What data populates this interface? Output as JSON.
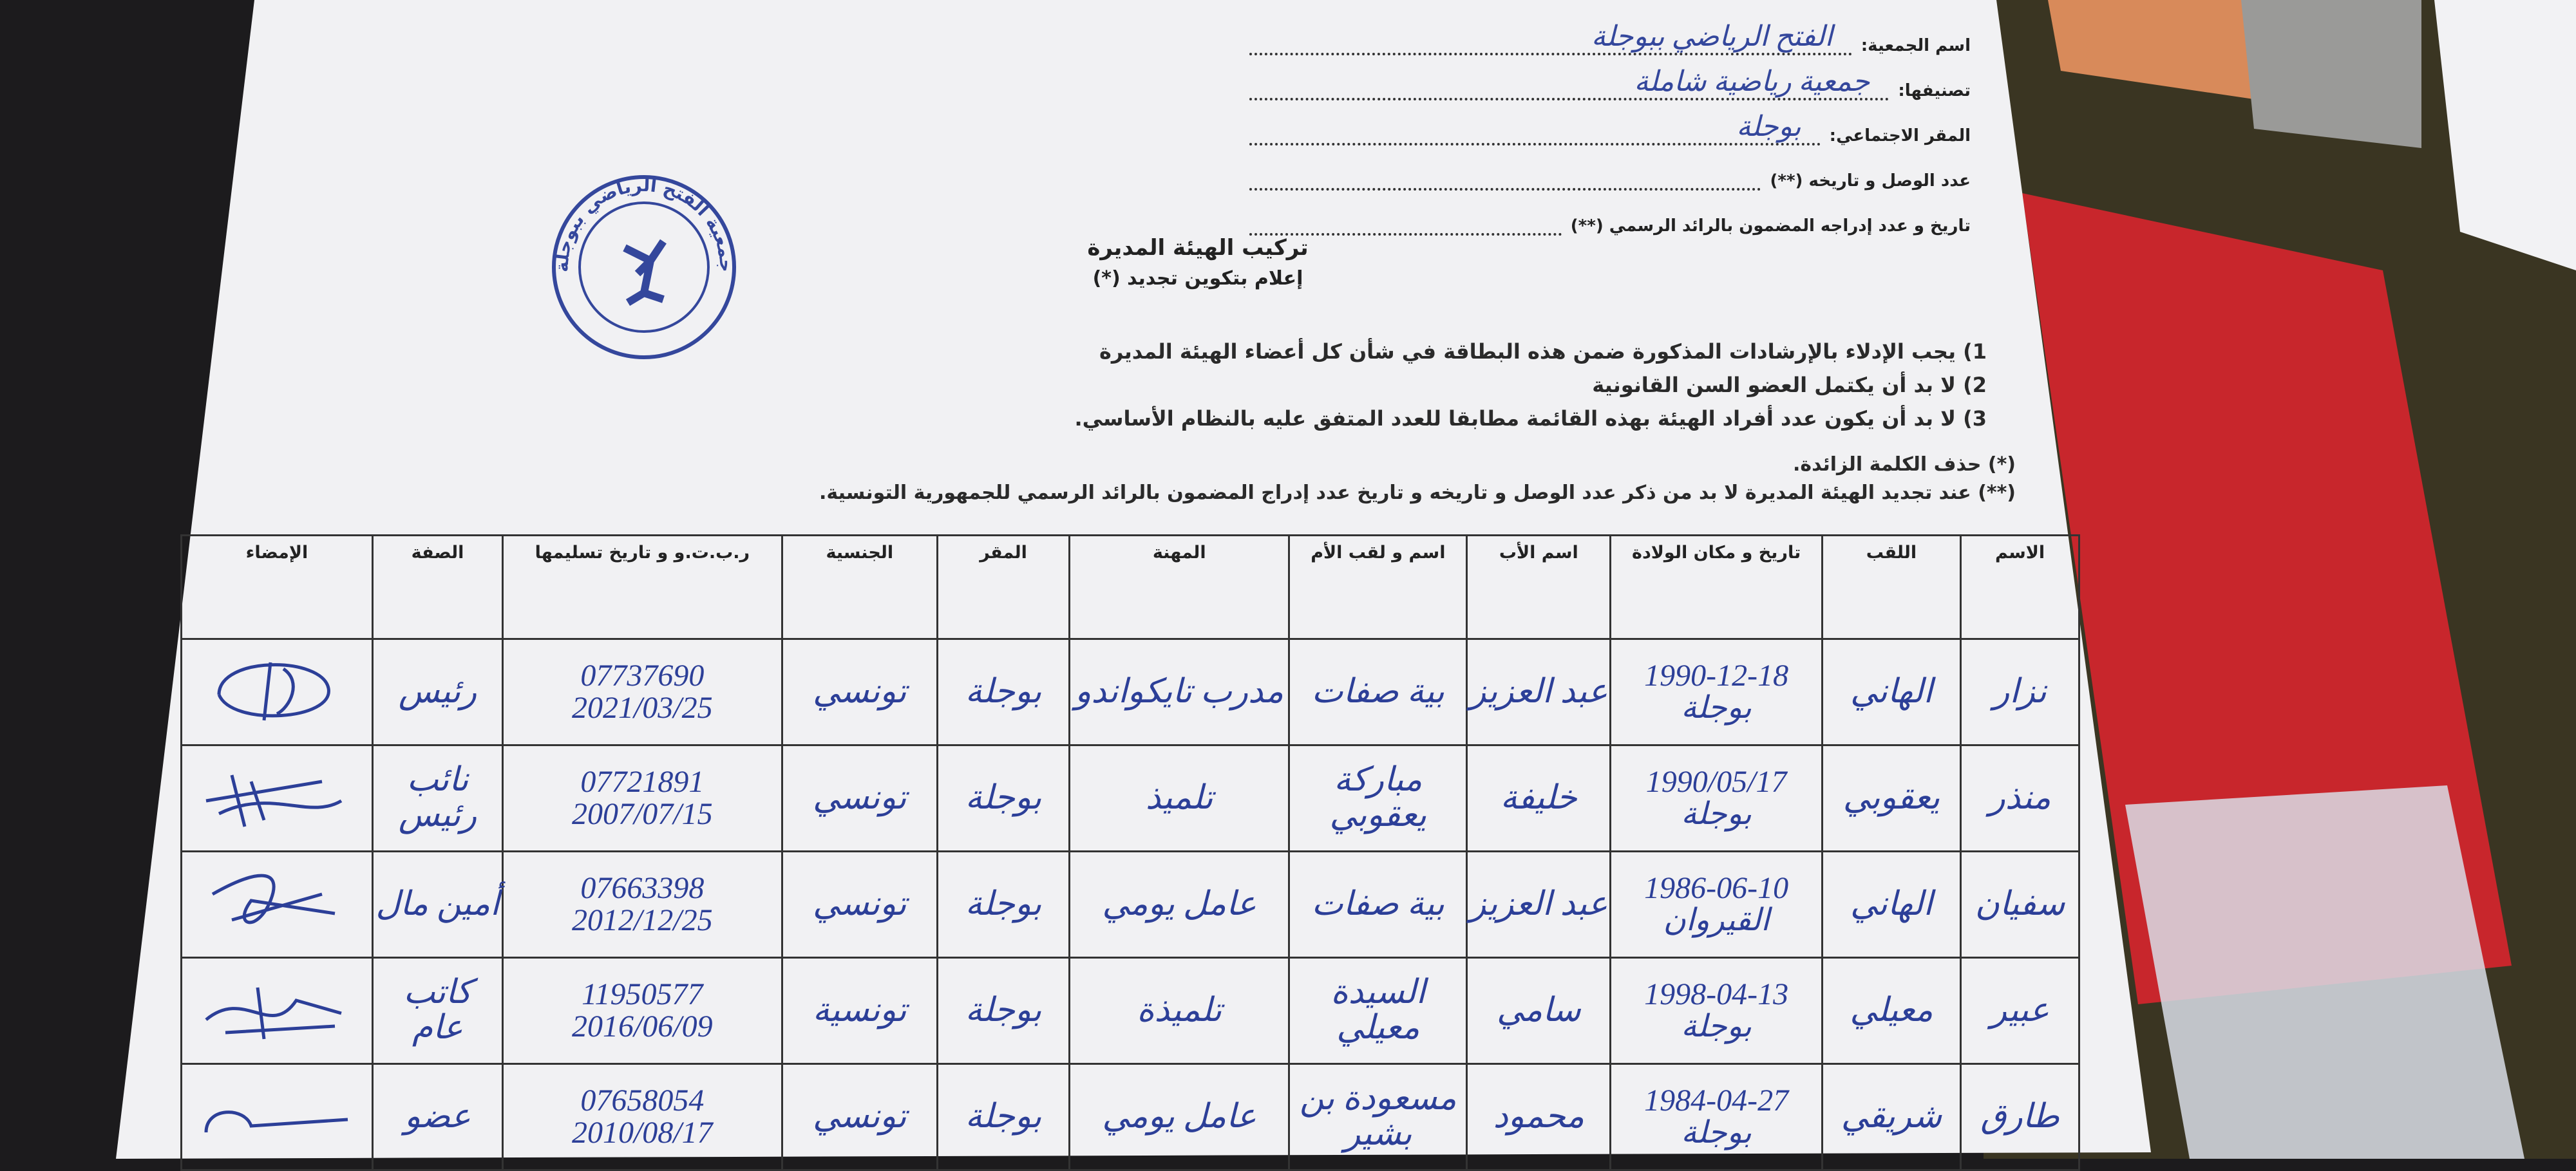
{
  "header": {
    "fields": [
      {
        "label": "اسم الجمعية:",
        "value": "الفتح الرياضي ببوجلة"
      },
      {
        "label": "تصنيفها:",
        "value": "جمعية رياضية شاملة"
      },
      {
        "label": "المقر الاجتماعي:",
        "value": "بوجلة"
      },
      {
        "label": "عدد الوصل و تاريخه (**)"
      },
      {
        "label": "تاريخ و عدد إدراجه المضمون بالرائد الرسمي (**)"
      }
    ]
  },
  "stamp": {
    "text": "جمعية الفتح الرياضي ببوجلة"
  },
  "title": "تركيب الهيئة المديرة",
  "subtitle": "إعلام بتكوين تجديد (*)",
  "instructions": [
    "1) يجب الإدلاء بالإرشادات المذكورة ضمن هذه البطاقة في شأن كل أعضاء الهيئة المديرة",
    "2) لا بد أن يكتمل العضو السن القانونية",
    "3) لا بد أن يكون عدد أفراد الهيئة بهذه القائمة مطابقا للعدد المتفق عليه بالنظام الأساسي."
  ],
  "notes": [
    "(*) حذف الكلمة الزائدة.",
    "(**) عند تجديد الهيئة المديرة لا بد من ذكر عدد الوصل و تاريخه و تاريخ عدد إدراج المضمون بالرائد الرسمي للجمهورية التونسية."
  ],
  "table": {
    "columns": [
      "الاسم",
      "اللقب",
      "تاريخ و مكان الولادة",
      "اسم الأب",
      "اسم و لقب الأم",
      "المهنة",
      "المقر",
      "الجنسية",
      "ر.ب.ت.و و تاريخ تسليمها",
      "الصفة",
      "الإمضاء"
    ],
    "rows": [
      [
        "نزار",
        "الهاني",
        [
          "1990-12-18",
          "بوجلة"
        ],
        "عبد العزيز",
        "بية صفات",
        "مدرب تايكواندو",
        "بوجلة",
        "تونسي",
        [
          "07737690",
          "2021/03/25"
        ],
        "رئيس"
      ],
      [
        "منذر",
        "يعقوبي",
        [
          "1990/05/17",
          "بوجلة"
        ],
        "خليفة",
        "مباركة يعقوبي",
        "تلميذ",
        "بوجلة",
        "تونسي",
        [
          "07721891",
          "2007/07/15"
        ],
        "نائب رئيس"
      ],
      [
        "سفيان",
        "الهاني",
        [
          "1986-06-10",
          "القيروان"
        ],
        "عبد العزيز",
        "بية صفات",
        "عامل يومي",
        "بوجلة",
        "تونسي",
        [
          "07663398",
          "2012/12/25"
        ],
        "أمين مال"
      ],
      [
        "عبير",
        "معيلي",
        [
          "1998-04-13",
          "بوجلة"
        ],
        "سامي",
        "السيدة معيلي",
        "تلميذة",
        "بوجلة",
        "تونسية",
        [
          "11950577",
          "2016/06/09"
        ],
        "كاتب عام"
      ],
      [
        "طارق",
        "شريقي",
        [
          "1984-04-27",
          "بوجلة"
        ],
        "محمود",
        "مسعودة بن بشير",
        "عامل يومي",
        "بوجلة",
        "تونسي",
        [
          "07658054",
          "2010/08/17"
        ],
        "عضو"
      ]
    ]
  }
}
